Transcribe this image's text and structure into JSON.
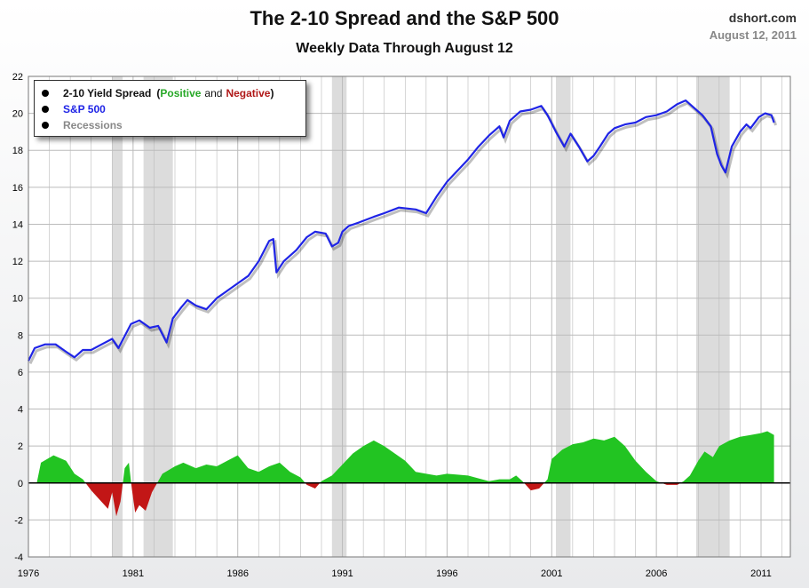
{
  "header": {
    "title": "The 2-10 Spread and the S&P 500",
    "subtitle": "Weekly Data Through August 12",
    "source": "dshort.com",
    "date": "August 12, 2011"
  },
  "legend": {
    "items": [
      {
        "label": "2-10 Yield Spread",
        "paren_open": "(",
        "positive": "Positive",
        "and": "and",
        "negative": "Negative",
        "paren_close": ")"
      },
      {
        "label": "S&P 500"
      },
      {
        "label": "Recessions"
      }
    ]
  },
  "colors": {
    "sp500": "#1f24e6",
    "positive": "#22c422",
    "negative": "#c21616",
    "recession": "#dcdcdc",
    "grid": "#bbbbbb",
    "positive_text": "#27a827",
    "negative_text": "#b01818",
    "recessions_text": "#888888"
  },
  "chart_data": {
    "type": "line",
    "title": "The 2-10 Spread and the S&P 500",
    "subtitle": "Weekly Data Through August 12",
    "xlim": [
      1976.0,
      2012.4
    ],
    "ylim": [
      -4,
      22
    ],
    "x_ticks": [
      1976,
      1981,
      1986,
      1991,
      1996,
      2001,
      2006,
      2011
    ],
    "x_tick_labels": [
      "1976",
      "1981",
      "1986",
      "1991",
      "1996",
      "2001",
      "2006",
      "2011"
    ],
    "y_ticks": [
      -4,
      -2,
      0,
      2,
      4,
      6,
      8,
      10,
      12,
      14,
      16,
      18,
      20,
      22
    ],
    "y_tick_labels": [
      "-4",
      "-2",
      "0",
      "2",
      "4",
      "6",
      "8",
      "10",
      "12",
      "14",
      "16",
      "18",
      "20",
      "22"
    ],
    "grid": true,
    "legend_position": "top-left",
    "recessions": [
      [
        1980.0,
        1980.5
      ],
      [
        1981.5,
        1982.9
      ],
      [
        1990.5,
        1991.2
      ],
      [
        2001.2,
        2001.9
      ],
      [
        2007.9,
        2009.5
      ]
    ],
    "series": [
      {
        "name": "S&P 500",
        "style": "line",
        "x": [
          1976.0,
          1976.3,
          1976.8,
          1977.3,
          1977.8,
          1978.2,
          1978.6,
          1979.0,
          1979.5,
          1980.0,
          1980.3,
          1980.9,
          1981.3,
          1981.8,
          1982.2,
          1982.6,
          1982.9,
          1983.3,
          1983.6,
          1984.0,
          1984.5,
          1985.0,
          1985.5,
          1986.0,
          1986.5,
          1987.0,
          1987.5,
          1987.7,
          1987.85,
          1988.2,
          1988.8,
          1989.3,
          1989.7,
          1990.2,
          1990.5,
          1990.8,
          1991.0,
          1991.3,
          1991.8,
          1992.5,
          1993.0,
          1993.7,
          1994.5,
          1995.0,
          1995.5,
          1996.0,
          1996.5,
          1997.0,
          1997.5,
          1998.0,
          1998.5,
          1998.7,
          1999.0,
          1999.5,
          2000.0,
          2000.5,
          2000.8,
          2001.2,
          2001.6,
          2001.9,
          2002.3,
          2002.7,
          2003.0,
          2003.3,
          2003.7,
          2004.0,
          2004.5,
          2005.0,
          2005.5,
          2006.0,
          2006.5,
          2007.0,
          2007.4,
          2007.8,
          2008.2,
          2008.6,
          2008.9,
          2009.1,
          2009.3,
          2009.6,
          2010.0,
          2010.3,
          2010.5,
          2010.9,
          2011.2,
          2011.5,
          2011.62
        ],
        "values": [
          6.6,
          7.3,
          7.5,
          7.5,
          7.1,
          6.8,
          7.2,
          7.2,
          7.5,
          7.8,
          7.3,
          8.6,
          8.8,
          8.4,
          8.5,
          7.6,
          8.9,
          9.5,
          9.9,
          9.6,
          9.4,
          10.0,
          10.4,
          10.8,
          11.2,
          12.0,
          13.1,
          13.2,
          11.4,
          12.0,
          12.6,
          13.3,
          13.6,
          13.5,
          12.8,
          13.0,
          13.6,
          13.9,
          14.1,
          14.4,
          14.6,
          14.9,
          14.8,
          14.6,
          15.5,
          16.3,
          16.9,
          17.5,
          18.2,
          18.8,
          19.3,
          18.7,
          19.6,
          20.1,
          20.2,
          20.4,
          19.9,
          19.0,
          18.2,
          18.9,
          18.2,
          17.4,
          17.7,
          18.2,
          18.9,
          19.2,
          19.4,
          19.5,
          19.8,
          19.9,
          20.1,
          20.5,
          20.7,
          20.3,
          19.9,
          19.3,
          17.8,
          17.2,
          16.8,
          18.2,
          19.0,
          19.4,
          19.2,
          19.8,
          20.0,
          19.9,
          19.5
        ]
      },
      {
        "name": "2-10 Yield Spread",
        "style": "area",
        "x": [
          1976.4,
          1976.6,
          1977.2,
          1977.8,
          1978.2,
          1978.6,
          1979.0,
          1979.4,
          1979.8,
          1980.0,
          1980.2,
          1980.4,
          1980.6,
          1980.8,
          1980.95,
          1981.1,
          1981.3,
          1981.6,
          1981.9,
          1982.1,
          1982.4,
          1982.7,
          1983.0,
          1983.4,
          1984.0,
          1984.5,
          1985.0,
          1985.5,
          1986.0,
          1986.5,
          1987.0,
          1987.5,
          1988.0,
          1988.5,
          1989.0,
          1989.3,
          1989.7,
          1990.0,
          1990.5,
          1991.0,
          1991.5,
          1992.0,
          1992.5,
          1993.0,
          1993.5,
          1994.0,
          1994.5,
          1995.0,
          1995.5,
          1996.0,
          1997.0,
          1998.0,
          1998.5,
          1999.0,
          1999.3,
          1999.6,
          2000.0,
          2000.4,
          2000.8,
          2001.0,
          2001.5,
          2002.0,
          2002.5,
          2003.0,
          2003.5,
          2004.0,
          2004.5,
          2005.0,
          2005.5,
          2006.0,
          2006.5,
          2007.0,
          2007.3,
          2007.6,
          2008.0,
          2008.3,
          2008.7,
          2009.0,
          2009.5,
          2010.0,
          2010.5,
          2011.0,
          2011.3,
          2011.62
        ],
        "values": [
          0,
          1.1,
          1.5,
          1.2,
          0.5,
          0.2,
          -0.4,
          -0.9,
          -1.4,
          -0.5,
          -1.8,
          -1.0,
          0.8,
          1.1,
          -0.4,
          -1.6,
          -1.2,
          -1.5,
          -0.5,
          -0.1,
          0.5,
          0.7,
          0.9,
          1.1,
          0.8,
          1.0,
          0.9,
          1.2,
          1.5,
          0.8,
          0.6,
          0.9,
          1.1,
          0.6,
          0.3,
          -0.1,
          -0.3,
          0.1,
          0.4,
          1.0,
          1.6,
          2.0,
          2.3,
          2.0,
          1.6,
          1.2,
          0.6,
          0.5,
          0.4,
          0.5,
          0.4,
          0.1,
          0.2,
          0.2,
          0.4,
          0.1,
          -0.4,
          -0.3,
          0.2,
          1.3,
          1.8,
          2.1,
          2.2,
          2.4,
          2.3,
          2.5,
          2.0,
          1.2,
          0.6,
          0.1,
          -0.1,
          -0.1,
          0.1,
          0.4,
          1.2,
          1.7,
          1.4,
          2.0,
          2.3,
          2.5,
          2.6,
          2.7,
          2.8,
          2.6
        ]
      }
    ]
  }
}
